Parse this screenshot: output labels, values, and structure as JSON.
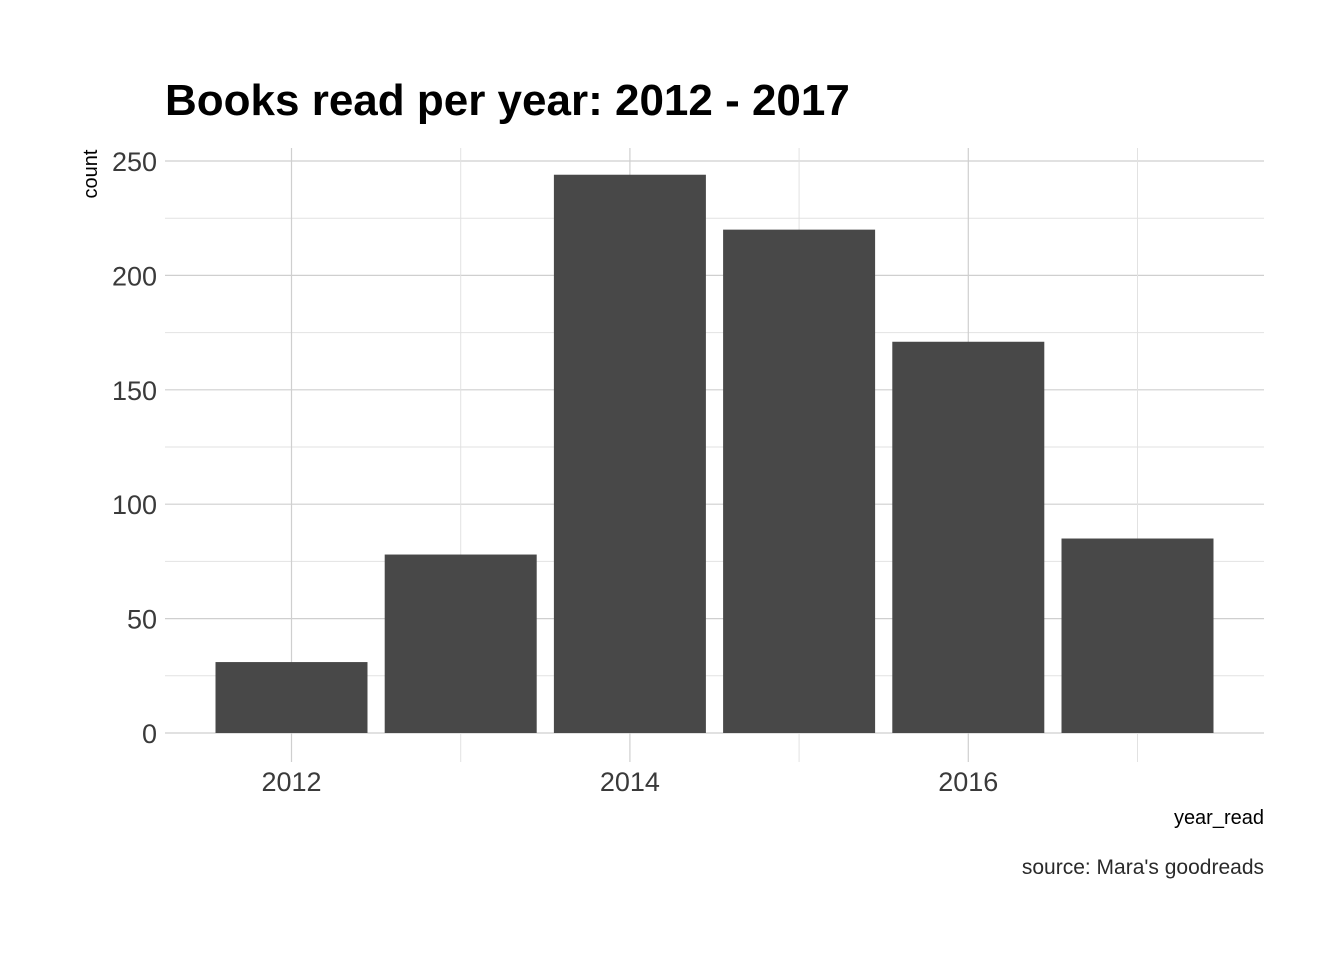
{
  "chart_data": {
    "type": "bar",
    "title": "Books read per year: 2012 - 2017",
    "xlabel": "year_read",
    "ylabel": "count",
    "caption": "source: Mara's goodreads",
    "categories": [
      2012,
      2013,
      2014,
      2015,
      2016,
      2017
    ],
    "values": [
      31,
      78,
      244,
      220,
      171,
      85
    ],
    "x_tick_labels": [
      "2012",
      "2014",
      "2016"
    ],
    "y_tick_labels": [
      "0",
      "50",
      "100",
      "150",
      "200",
      "250"
    ],
    "ylim": [
      0,
      250
    ],
    "grid": true,
    "legend": "none",
    "colors": {
      "bar": "#484848",
      "grid_major": "#cfcfcf",
      "grid_minor": "#e2e2e2",
      "background": "#ffffff"
    }
  }
}
